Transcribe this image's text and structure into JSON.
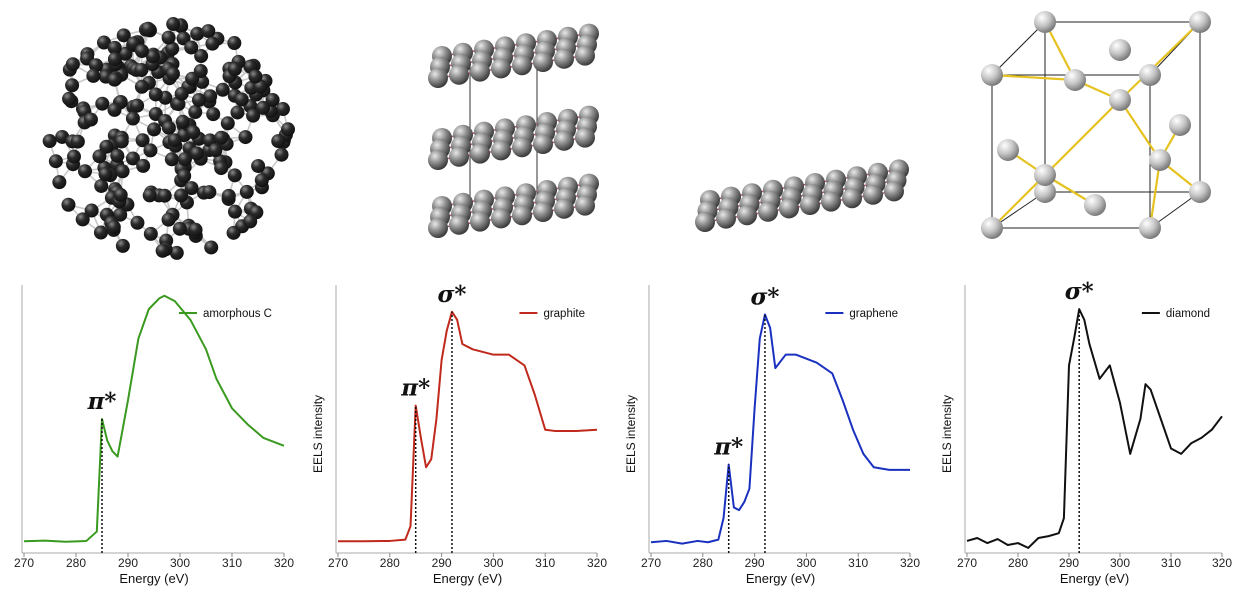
{
  "chart_data": [
    {
      "type": "line",
      "xlim": [
        270,
        320
      ],
      "xticks": [
        270,
        280,
        290,
        300,
        310,
        320
      ],
      "ylim": [
        0,
        1
      ],
      "xlabel": "Energy (eV)",
      "x": [
        270,
        274,
        278,
        282,
        284,
        285,
        286,
        287,
        288,
        290,
        292,
        294,
        296,
        297,
        299,
        302,
        305,
        307,
        310,
        313,
        316,
        320
      ],
      "series": [
        {
          "name": "amorphous C",
          "color": "#3a9a1f",
          "values": [
            0.044,
            0.046,
            0.042,
            0.045,
            0.08,
            0.5,
            0.42,
            0.38,
            0.36,
            0.57,
            0.8,
            0.91,
            0.95,
            0.96,
            0.94,
            0.87,
            0.76,
            0.65,
            0.54,
            0.48,
            0.43,
            0.4
          ]
        }
      ],
      "markers": [
        {
          "x": 285,
          "label": "π*"
        }
      ]
    },
    {
      "type": "line",
      "xlim": [
        270,
        320
      ],
      "xticks": [
        270,
        280,
        290,
        300,
        310,
        320
      ],
      "ylim": [
        0,
        1
      ],
      "xlabel": "Energy (eV)",
      "ylabel": "EELS intensity",
      "x": [
        270,
        275,
        280,
        283,
        284,
        285,
        286,
        287,
        288,
        289,
        290,
        291,
        292,
        293,
        294,
        296,
        300,
        303,
        306,
        308,
        310,
        312,
        316,
        320
      ],
      "series": [
        {
          "name": "graphite",
          "color": "#c0291c",
          "values": [
            0.044,
            0.044,
            0.045,
            0.05,
            0.1,
            0.55,
            0.43,
            0.32,
            0.35,
            0.5,
            0.72,
            0.83,
            0.9,
            0.87,
            0.78,
            0.76,
            0.74,
            0.74,
            0.7,
            0.59,
            0.46,
            0.455,
            0.455,
            0.46
          ]
        }
      ],
      "markers": [
        {
          "x": 285,
          "label": "π*"
        },
        {
          "x": 292,
          "label": "σ*"
        }
      ]
    },
    {
      "type": "line",
      "xlim": [
        270,
        320
      ],
      "xticks": [
        270,
        280,
        290,
        300,
        310,
        320
      ],
      "ylim": [
        0,
        1
      ],
      "xlabel": "Energy (eV)",
      "ylabel": "EELS intensity",
      "x": [
        270,
        273,
        276,
        279,
        281,
        283,
        284,
        285,
        286,
        287,
        288,
        289,
        290,
        291,
        292,
        293,
        294,
        296,
        298,
        302,
        305,
        307,
        309,
        311,
        313,
        316,
        320
      ],
      "series": [
        {
          "name": "graphene",
          "color": "#1a31c0",
          "values": [
            0.04,
            0.045,
            0.035,
            0.045,
            0.04,
            0.05,
            0.13,
            0.33,
            0.17,
            0.16,
            0.19,
            0.24,
            0.54,
            0.8,
            0.89,
            0.84,
            0.69,
            0.74,
            0.74,
            0.71,
            0.67,
            0.57,
            0.46,
            0.37,
            0.32,
            0.31,
            0.31
          ]
        }
      ],
      "markers": [
        {
          "x": 285,
          "label": "π*"
        },
        {
          "x": 292,
          "label": "σ*"
        }
      ]
    },
    {
      "type": "line",
      "xlim": [
        270,
        320
      ],
      "xticks": [
        270,
        280,
        290,
        300,
        310,
        320
      ],
      "ylim": [
        0,
        1
      ],
      "xlabel": "Energy (eV)",
      "ylabel": "EELS intensity",
      "x": [
        270,
        272,
        274,
        276,
        278,
        280,
        282,
        284,
        286,
        288,
        289,
        290,
        291,
        292,
        293,
        294,
        296,
        298,
        300,
        302,
        304,
        305,
        306,
        308,
        310,
        312,
        314,
        316,
        318,
        320
      ],
      "series": [
        {
          "name": "diamond",
          "color": "#111111",
          "values": [
            0.045,
            0.056,
            0.037,
            0.052,
            0.03,
            0.037,
            0.019,
            0.056,
            0.063,
            0.074,
            0.13,
            0.7,
            0.8,
            0.91,
            0.87,
            0.78,
            0.65,
            0.7,
            0.56,
            0.37,
            0.5,
            0.63,
            0.61,
            0.5,
            0.39,
            0.37,
            0.41,
            0.43,
            0.46,
            0.51
          ]
        }
      ],
      "markers": [
        {
          "x": 292,
          "label": "σ*"
        }
      ]
    }
  ]
}
